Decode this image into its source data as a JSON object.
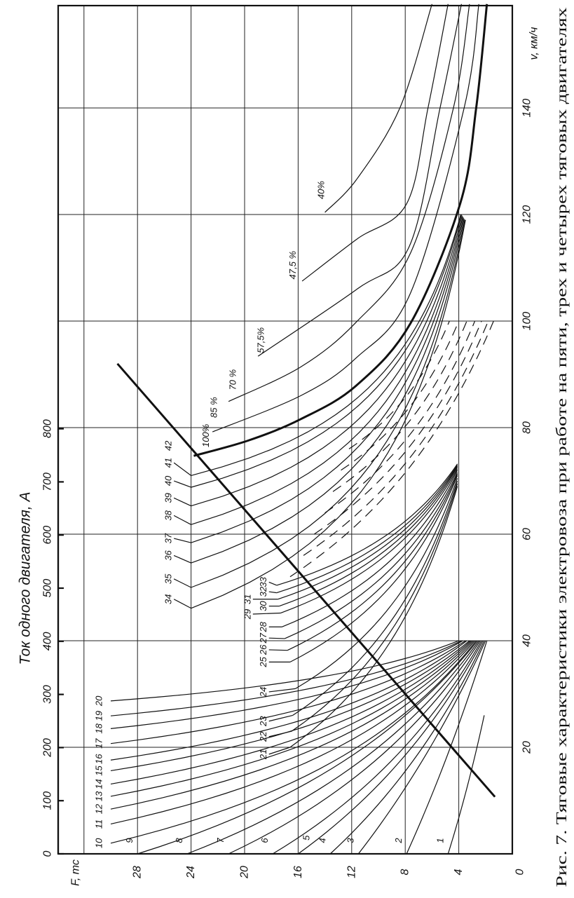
{
  "caption": "Рис. 7. Тяговые характеристики электровоза при работе  на пяти, трех и четырех тяговых двигателях",
  "chart_data": {
    "type": "line",
    "title": "Тяговые характеристики электровоза",
    "xlabel": "v, км/ч",
    "ylabel": "F, тс",
    "secondary_axis_label": "Ток одного двигателя, А",
    "xlim": [
      0,
      160
    ],
    "ylim": [
      0,
      32
    ],
    "current_lim": [
      0,
      800
    ],
    "grid": true,
    "origin_label": "0",
    "x_ticks": [
      "20",
      "40",
      "60",
      "80",
      "100",
      "120",
      "140"
    ],
    "y_ticks": [
      "4",
      "8",
      "12",
      "16",
      "20",
      "24",
      "28"
    ],
    "current_ticks": [
      "0",
      "100",
      "200",
      "300",
      "400",
      "500",
      "600",
      "700",
      "800"
    ],
    "limit_line": {
      "points": [
        [
          10.7,
          1.3
        ],
        [
          92,
          29.5
        ]
      ]
    },
    "series": [
      {
        "name": "1",
        "start": [
          0,
          4.8
        ],
        "end": [
          26,
          2.1
        ],
        "k": 0.2,
        "label_at": [
          2.5,
          5.4
        ]
      },
      {
        "name": "2",
        "start": [
          0,
          7.9
        ],
        "end": [
          40,
          1.9
        ],
        "k": 0.2,
        "label_at": [
          2.5,
          8.5
        ]
      },
      {
        "name": "3",
        "start": [
          0,
          11.5
        ],
        "end": [
          40,
          2.0
        ],
        "k": 0.3,
        "label_at": [
          2.5,
          12.1
        ]
      },
      {
        "name": "4",
        "start": [
          0,
          13.6
        ],
        "end": [
          40,
          2.1
        ],
        "k": 0.5,
        "label_at": [
          2.5,
          14.2
        ]
      },
      {
        "name": "5",
        "start": [
          0,
          16.0
        ],
        "end": [
          40,
          2.2
        ],
        "k": 0.6,
        "label_at": [
          3.0,
          15.4
        ]
      },
      {
        "name": "6",
        "start": [
          0,
          17.9
        ],
        "end": [
          40,
          2.3
        ],
        "k": 0.7,
        "label_at": [
          2.5,
          18.5
        ]
      },
      {
        "name": "7",
        "start": [
          0,
          21.2
        ],
        "end": [
          40,
          2.4
        ],
        "k": 0.8,
        "label_at": [
          2.5,
          21.8
        ]
      },
      {
        "name": "8",
        "start": [
          0,
          24.3
        ],
        "end": [
          40,
          2.5
        ],
        "k": 0.9,
        "label_at": [
          2.5,
          24.9
        ]
      },
      {
        "name": "9",
        "start": [
          0,
          28.0
        ],
        "end": [
          40,
          2.6
        ],
        "k": 1.0,
        "label_at": [
          2.5,
          28.6
        ]
      },
      {
        "name": "10",
        "start": [
          2.0,
          30
        ],
        "end": [
          40,
          2.7
        ],
        "k": 1.3,
        "label_at": [
          2.0,
          30.9
        ]
      },
      {
        "name": "11",
        "start": [
          5.6,
          30
        ],
        "end": [
          40,
          2.8
        ],
        "k": 1.3,
        "label_at": [
          5.6,
          30.9
        ]
      },
      {
        "name": "12",
        "start": [
          8.4,
          30
        ],
        "end": [
          40,
          2.9
        ],
        "k": 1.3,
        "label_at": [
          8.4,
          30.9
        ]
      },
      {
        "name": "13",
        "start": [
          10.8,
          30
        ],
        "end": [
          40,
          3.0
        ],
        "k": 1.3,
        "label_at": [
          10.8,
          30.9
        ]
      },
      {
        "name": "14",
        "start": [
          13.1,
          30
        ],
        "end": [
          40,
          3.1
        ],
        "k": 1.3,
        "label_at": [
          13.1,
          30.9
        ]
      },
      {
        "name": "15",
        "start": [
          15.6,
          30
        ],
        "end": [
          40,
          3.2
        ],
        "k": 1.3,
        "label_at": [
          15.6,
          30.9
        ]
      },
      {
        "name": "16",
        "start": [
          17.6,
          30
        ],
        "end": [
          40,
          3.4
        ],
        "k": 1.3,
        "label_at": [
          17.8,
          30.9
        ]
      },
      {
        "name": "17",
        "start": [
          20.7,
          30
        ],
        "end": [
          40,
          3.5
        ],
        "k": 1.3,
        "label_at": [
          20.7,
          30.9
        ]
      },
      {
        "name": "18",
        "start": [
          23.5,
          30
        ],
        "end": [
          40,
          3.7
        ],
        "k": 1.3,
        "label_at": [
          23.5,
          30.9
        ]
      },
      {
        "name": "19",
        "start": [
          25.9,
          30
        ],
        "end": [
          40,
          3.8
        ],
        "k": 1.3,
        "label_at": [
          25.9,
          30.9
        ]
      },
      {
        "name": "20",
        "start": [
          28.7,
          30
        ],
        "end": [
          40,
          4.0
        ],
        "k": 1.3,
        "label_at": [
          28.7,
          30.9
        ]
      },
      {
        "name": "21",
        "start": [
          20,
          16.6
        ],
        "end": [
          69,
          4.1
        ],
        "k": 1.2,
        "label_at": [
          18.7,
          18.6
        ],
        "leader": true
      },
      {
        "name": "22",
        "start": [
          23,
          16.5
        ],
        "end": [
          69.5,
          4.1
        ],
        "k": 1.2,
        "label_at": [
          22,
          18.6
        ],
        "leader": true
      },
      {
        "name": "23",
        "start": [
          26,
          16.4
        ],
        "end": [
          70,
          4.1
        ],
        "k": 1.2,
        "label_at": [
          24.9,
          18.6
        ],
        "leader": true
      },
      {
        "name": "24",
        "start": [
          31,
          16.2
        ],
        "end": [
          70.5,
          4.1
        ],
        "k": 1.2,
        "label_at": [
          30.4,
          18.6
        ],
        "leader": true
      },
      {
        "name": "25",
        "start": [
          36,
          16.6
        ],
        "end": [
          71,
          4.1
        ],
        "k": 1.2,
        "label_at": [
          36,
          18.6
        ],
        "leader": true
      },
      {
        "name": "26",
        "start": [
          38.2,
          16.8
        ],
        "end": [
          71.3,
          4.1
        ],
        "k": 1.2,
        "label_at": [
          38.3,
          18.6
        ],
        "leader": true
      },
      {
        "name": "27",
        "start": [
          40.4,
          17.0
        ],
        "end": [
          71.6,
          4.1
        ],
        "k": 1.2,
        "label_at": [
          40.5,
          18.6
        ],
        "leader": true
      },
      {
        "name": "28",
        "start": [
          42.6,
          17.2
        ],
        "end": [
          72,
          4.1
        ],
        "k": 1.2,
        "label_at": [
          42.6,
          18.6
        ],
        "leader": true
      },
      {
        "name": "29",
        "start": [
          45.2,
          17.3
        ],
        "end": [
          72.3,
          4.1
        ],
        "k": 1.2,
        "label_at": [
          45.0,
          19.8
        ],
        "leader": true
      },
      {
        "name": "30",
        "start": [
          46.5,
          17.4
        ],
        "end": [
          72.6,
          4.1
        ],
        "k": 1.2,
        "label_at": [
          46.5,
          18.6
        ],
        "leader": true
      },
      {
        "name": "31",
        "start": [
          47.8,
          17.5
        ],
        "end": [
          72.8,
          4.1
        ],
        "k": 1.2,
        "label_at": [
          47.8,
          19.8
        ],
        "leader": true
      },
      {
        "name": "32",
        "start": [
          49.0,
          17.6
        ],
        "end": [
          73,
          4.1
        ],
        "k": 1.2,
        "label_at": [
          49.2,
          18.6
        ],
        "leader": true
      },
      {
        "name": "33",
        "start": [
          50.4,
          17.6
        ],
        "end": [
          73.2,
          4.1
        ],
        "k": 1.2,
        "label_at": [
          51,
          18.6
        ],
        "leader": true
      },
      {
        "name": "dashed-1",
        "start": [
          52,
          16.6
        ],
        "end": [
          100,
          1.4
        ],
        "k": 0.9,
        "style": "dashed"
      },
      {
        "name": "dashed-2",
        "start": [
          56,
          15.6
        ],
        "end": [
          100,
          1.8
        ],
        "k": 0.9,
        "style": "dashed"
      },
      {
        "name": "dashed-3",
        "start": [
          60,
          14.8
        ],
        "end": [
          100,
          2.3
        ],
        "k": 0.9,
        "style": "dashed"
      },
      {
        "name": "dashed-4",
        "start": [
          64,
          14.0
        ],
        "end": [
          100,
          2.8
        ],
        "k": 0.9,
        "style": "dashed"
      },
      {
        "name": "dashed-5",
        "start": [
          68,
          13.4
        ],
        "end": [
          100,
          3.4
        ],
        "k": 0.9,
        "style": "dashed"
      },
      {
        "name": "dashed-6",
        "start": [
          72,
          12.8
        ],
        "end": [
          100,
          4.0
        ],
        "k": 0.9,
        "style": "dashed"
      },
      {
        "name": "dashed-7",
        "start": [
          76,
          12.2
        ],
        "end": [
          100,
          4.7
        ],
        "k": 0.9,
        "style": "dashed"
      },
      {
        "name": "34",
        "start": [
          46.1,
          24
        ],
        "end": [
          119,
          3.5
        ],
        "k": 2.8,
        "label_at": [
          47.8,
          25.7
        ],
        "leader": true
      },
      {
        "name": "35",
        "start": [
          50.0,
          24
        ],
        "end": [
          119,
          3.55
        ],
        "k": 2.8,
        "label_at": [
          51.6,
          25.7
        ],
        "leader": true
      },
      {
        "name": "36",
        "start": [
          54.6,
          24
        ],
        "end": [
          119.2,
          3.6
        ],
        "k": 2.8,
        "label_at": [
          56,
          25.7
        ],
        "leader": true
      },
      {
        "name": "37",
        "start": [
          58.4,
          24
        ],
        "end": [
          119.4,
          3.65
        ],
        "k": 2.8,
        "label_at": [
          59.2,
          25.7
        ],
        "leader": true
      },
      {
        "name": "38",
        "start": [
          61.8,
          24
        ],
        "end": [
          119.6,
          3.7
        ],
        "k": 2.8,
        "label_at": [
          63.5,
          25.7
        ],
        "leader": true
      },
      {
        "name": "39",
        "start": [
          65.3,
          24
        ],
        "end": [
          119.8,
          3.75
        ],
        "k": 2.8,
        "label_at": [
          66.8,
          25.7
        ],
        "leader": true
      },
      {
        "name": "40",
        "start": [
          68.8,
          24
        ],
        "end": [
          120,
          3.8
        ],
        "k": 2.8,
        "label_at": [
          70,
          25.7
        ],
        "leader": true
      },
      {
        "name": "41",
        "start": [
          71.0,
          24
        ],
        "end": [
          120,
          3.85
        ],
        "k": 2.8,
        "label_at": [
          73.4,
          25.7
        ],
        "leader": true
      },
      {
        "name": "42",
        "style": "thick",
        "points": [
          [
            74.7,
            23.8
          ],
          [
            77.6,
            19.7
          ],
          [
            81.6,
            15.8
          ],
          [
            87.8,
            11.7
          ],
          [
            99.6,
            7.6
          ],
          [
            122,
            3.9
          ],
          [
            140,
            2.7
          ],
          [
            159.5,
            1.9
          ]
        ],
        "label_at": [
          76.6,
          25.7
        ]
      },
      {
        "name": "100%",
        "field": "100%",
        "label_at": [
          78.5,
          22.9
        ]
      },
      {
        "name": "85 %",
        "points": [
          [
            79.2,
            22.4
          ],
          [
            86,
            15.8
          ],
          [
            93,
            11.7
          ],
          [
            105.3,
            7.6
          ],
          [
            140,
            3.6
          ],
          [
            159.5,
            2.5
          ]
        ],
        "label_at": [
          83.8,
          22.3
        ]
      },
      {
        "name": "70 %",
        "points": [
          [
            84.9,
            21.2
          ],
          [
            91.4,
            15.8
          ],
          [
            99.7,
            11.7
          ],
          [
            112.8,
            7.6
          ],
          [
            140,
            4.4
          ],
          [
            159.5,
            3.2
          ]
        ],
        "label_at": [
          89,
          20.9
        ]
      },
      {
        "name": "57,5%",
        "points": [
          [
            93.4,
            19.0
          ],
          [
            106,
            11.6
          ],
          [
            114,
            7.7
          ],
          [
            140,
            5.4
          ],
          [
            159.5,
            3.8
          ]
        ],
        "label_at": [
          96.4,
          18.8
        ]
      },
      {
        "name": "47,5 %",
        "points": [
          [
            107.5,
            15.7
          ],
          [
            115.4,
            11.6
          ],
          [
            122,
            7.9
          ],
          [
            140,
            6.3
          ],
          [
            159.5,
            4.8
          ]
        ],
        "label_at": [
          110.5,
          16.4
        ]
      },
      {
        "name": "40%",
        "points": [
          [
            120.4,
            14.0
          ],
          [
            126.7,
            11.6
          ],
          [
            140,
            8.4
          ],
          [
            159.5,
            6.0
          ]
        ],
        "label_at": [
          124.6,
          14.3
        ]
      }
    ]
  }
}
